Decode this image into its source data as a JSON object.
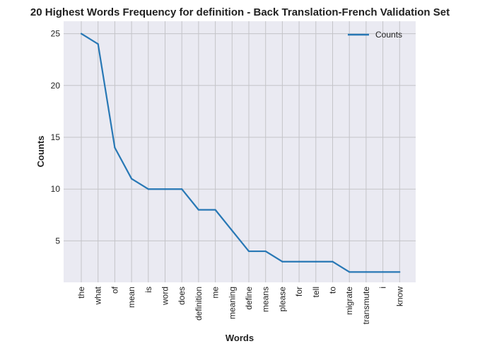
{
  "chart_data": {
    "type": "line",
    "title": "20 Highest Words Frequency for definition - Back Translation-French Validation Set",
    "xlabel": "Words",
    "ylabel": "Counts",
    "categories": [
      "the",
      "what",
      "of",
      "mean",
      "is",
      "word",
      "does",
      "definition",
      "me",
      "meaning",
      "define",
      "means",
      "please",
      "for",
      "tell",
      "to",
      "migrate",
      "transmute",
      "i",
      "know"
    ],
    "series": [
      {
        "name": "Counts",
        "values": [
          25,
          24,
          14,
          11,
          10,
          10,
          10,
          8,
          8,
          6,
          4,
          4,
          3,
          3,
          3,
          3,
          2,
          2,
          2,
          2
        ],
        "color": "#2878b5"
      }
    ],
    "yticks": [
      5,
      10,
      15,
      20,
      25
    ],
    "ylim": [
      1,
      26.2
    ],
    "grid": true,
    "legend_position": "top-right",
    "background_color": "#eaeaf2",
    "grid_color": "#c4c4c8"
  }
}
